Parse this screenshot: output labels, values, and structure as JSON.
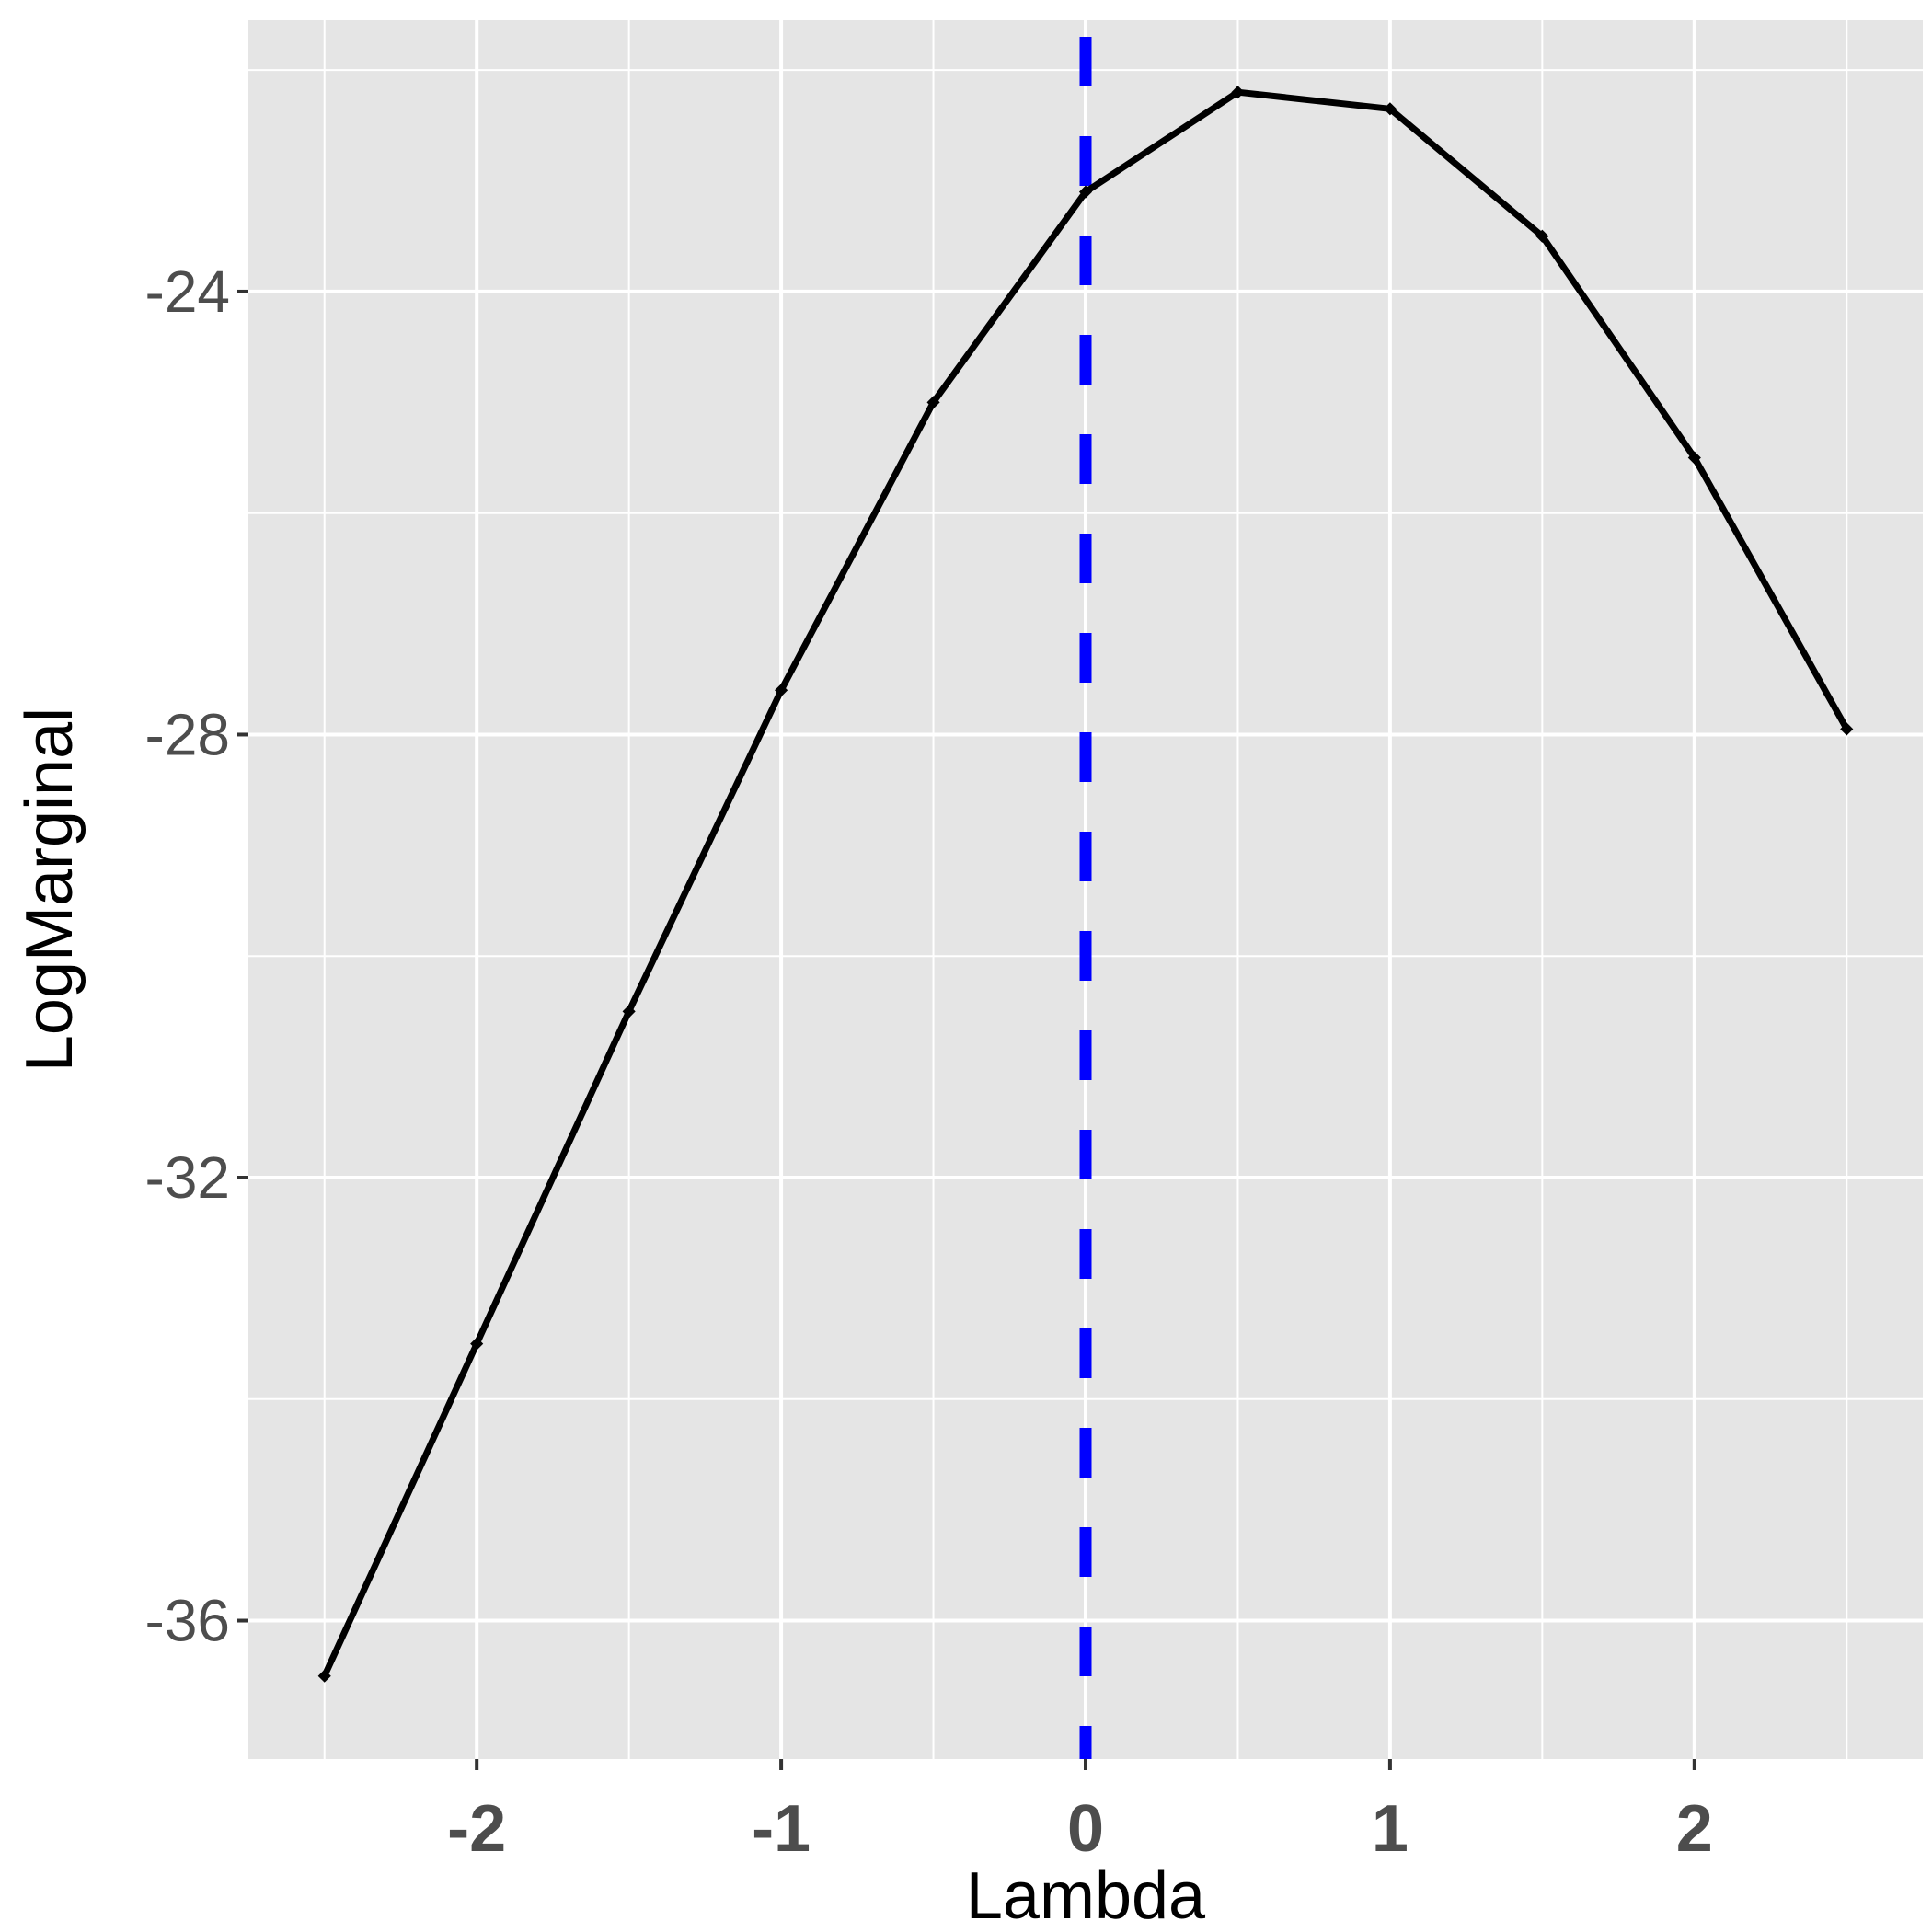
{
  "chart_data": {
    "type": "line",
    "title": "",
    "xlabel": "Lambda",
    "ylabel": "LogMarginal",
    "xlim": [
      -2.75,
      2.75
    ],
    "ylim": [
      -37.25,
      -21.55
    ],
    "x_ticks": [
      -2,
      -1,
      0,
      1,
      2
    ],
    "x_tick_labels": [
      "-2",
      "-1",
      "0",
      "1",
      "2"
    ],
    "y_ticks": [
      -24,
      -28,
      -32,
      -36
    ],
    "y_tick_labels": [
      "-24",
      "-28",
      "-32",
      "-36"
    ],
    "grid": true,
    "legend": "none",
    "series": [
      {
        "x": [
          -2.5,
          -2.0,
          -1.5,
          -1.0,
          -0.5,
          0.0,
          0.5,
          1.0,
          1.5,
          2.0,
          2.5
        ],
        "y": [
          -36.5,
          -33.5,
          -30.5,
          -27.6,
          -25.0,
          -23.1,
          -22.2,
          -22.35,
          -23.5,
          -25.5,
          -27.95
        ],
        "color": "#000000"
      }
    ],
    "reference_lines": [
      {
        "orientation": "vertical",
        "x": 0,
        "style": "dashed",
        "color": "#0000ff"
      }
    ],
    "panel_background": "#e5e5e5",
    "grid_color": "#ffffff"
  }
}
